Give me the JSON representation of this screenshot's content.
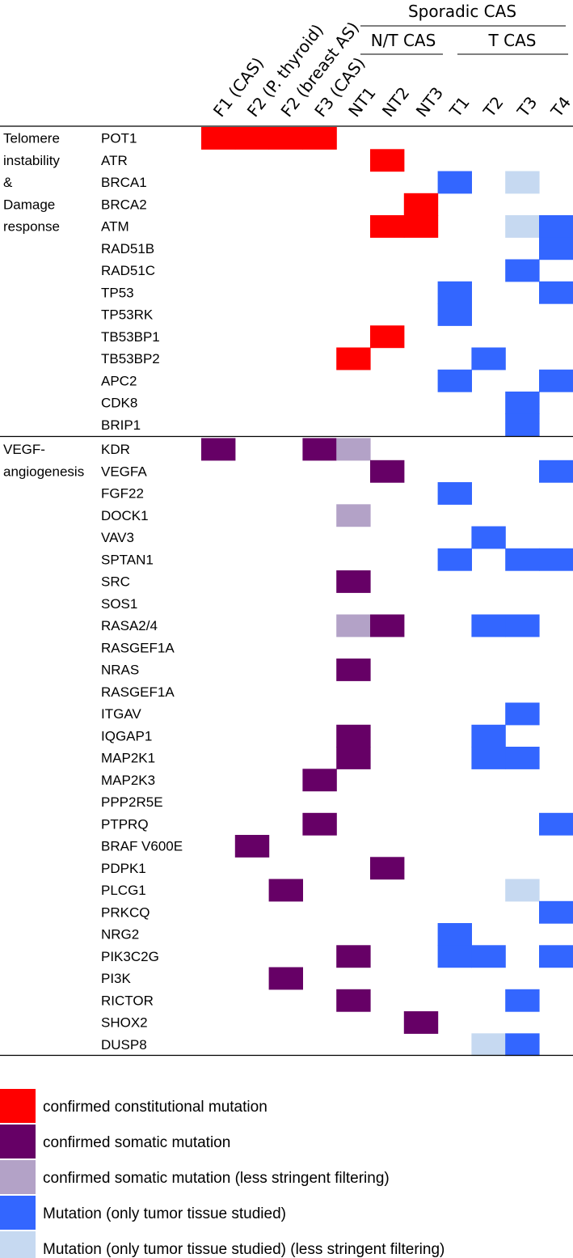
{
  "chart_data": {
    "type": "heatmap",
    "header": {
      "sporadic": "Sporadic CAS",
      "nt_group": "N/T CAS",
      "t_group": "T CAS"
    },
    "columns": [
      "F1 (CAS)",
      "F2 (P. thyroid)",
      "F2 (breast AS)",
      "F3  (CAS)",
      "NT1",
      "NT2",
      "NT3",
      "T1",
      "T2",
      "T3",
      "T4"
    ],
    "sections": [
      {
        "label_lines": [
          "Telomere",
          "instability",
          "&",
          "Damage",
          "response"
        ],
        "genes": [
          "POT1",
          "ATR",
          "BRCA1",
          "BRCA2",
          "ATM",
          "RAD51B",
          "RAD51C",
          "TP53",
          "TP53RK",
          "TB53BP1",
          "TB53BP2",
          "APC2",
          "CDK8",
          "BRIP1"
        ]
      },
      {
        "label_lines": [
          "VEGF-",
          "angiogenesis"
        ],
        "genes": [
          "KDR",
          "VEGFA",
          "FGF22",
          "DOCK1",
          "VAV3",
          "SPTAN1",
          "SRC",
          "SOS1",
          "RASA2/4",
          "RASGEF1A",
          "NRAS",
          "RASGEF1A",
          "ITGAV",
          "IQGAP1",
          "MAP2K1",
          "MAP2K3",
          "PPP2R5E",
          "PTPRQ",
          "BRAF V600E",
          "PDPK1",
          "PLCG1",
          "PRKCQ",
          "NRG2",
          "PIK3C2G",
          "PI3K",
          "RICTOR",
          "SHOX2",
          "DUSP8"
        ]
      }
    ],
    "legend": [
      {
        "code": "C",
        "color": "#ff0000",
        "label": "confirmed constitutional mutation"
      },
      {
        "code": "S",
        "color": "#660066",
        "label": "confirmed somatic mutation"
      },
      {
        "code": "s",
        "color": "#b3a2c7",
        "label": "confirmed somatic mutation (less stringent filtering)"
      },
      {
        "code": "T",
        "color": "#3366ff",
        "label": "Mutation (only tumor tissue studied)"
      },
      {
        "code": "t",
        "color": "#c6d9f1",
        "label": "Mutation (only tumor tissue studied) (less stringent filtering)"
      }
    ],
    "cells": [
      "CCCC.......",
      ".....C.....",
      ".......T.t.",
      "......C....",
      ".....CC..tT",
      "..........T",
      ".........T.",
      ".......T..T",
      ".......T...",
      ".....C.....",
      "....C...T..",
      ".......T..T",
      ".........T.",
      ".........T.",
      "S..Ss......",
      ".....S....T",
      ".......T...",
      "....s......",
      "........T..",
      ".......T.TT",
      "....S......",
      "...........",
      "....sS..TT.",
      "...........",
      "....S......",
      "...........",
      ".........T.",
      "....S...T..",
      "....S...TT.",
      "...S.......",
      "...........",
      "...S......T",
      ".S.........",
      ".....S.....",
      "..S......t.",
      "..........T",
      ".......T...",
      "....S..TT.T",
      "..S........",
      "....S....T.",
      "......S....",
      "........tT."
    ]
  }
}
